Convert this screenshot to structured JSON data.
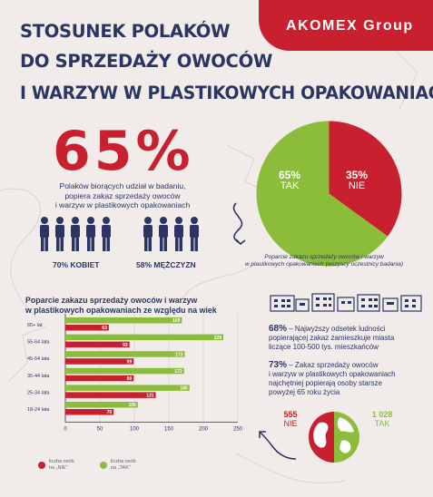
{
  "header": {
    "brand": "AKOMEX Group",
    "title_lines": [
      "STOSUNEK POLAKÓW",
      "DO SPRZEDAŻY OWOCÓW",
      "I WARZYW W PLASTIKOWYCH OPAKOWANIACH"
    ]
  },
  "headline": {
    "percent": "65%",
    "description_lines": [
      "Polaków biorących udział w badaniu,",
      "popiera zakaz sprzedaży owoców",
      "i warzyw w plastikowych opakowaniach"
    ]
  },
  "gender": {
    "women_label": "70% KOBIET",
    "women_value": 70,
    "men_label": "58% MĘŻCZYZN",
    "men_value": 58
  },
  "pie": {
    "slices": [
      {
        "pct": "65%",
        "word": "TAK",
        "value": 65,
        "color": "#8bbd3a"
      },
      {
        "pct": "35%",
        "word": "NIE",
        "value": 35,
        "color": "#c8202e"
      }
    ],
    "caption_lines": [
      "Poparcie zakazu sprzedaży owoców i warzyw",
      "w plastikowych opakowaniach (wszyscy uczestnicy badania)"
    ]
  },
  "chart_title_lines": [
    "Poparcie zakazu sprzedaży owoców i warzyw",
    "w plastikowych opakowaniach ze względu na wiek"
  ],
  "chart_data": {
    "type": "bar",
    "orientation": "horizontal",
    "categories": [
      "65+ lat",
      "55-64 lata",
      "45-54 lata",
      "35-44 lata",
      "25-34 lata",
      "18-24 lata"
    ],
    "series": [
      {
        "name": "liczba osób na „TAK”",
        "color": "#8bbd3a",
        "values": [
          169,
          229,
          173,
          172,
          180,
          105
        ]
      },
      {
        "name": "liczba osób na „NIE”",
        "color": "#c8202e",
        "values": [
          63,
          93,
          99,
          99,
          131,
          70
        ]
      }
    ],
    "xlim": [
      0,
      250
    ],
    "xticks": [
      0,
      50,
      100,
      150,
      200,
      250
    ],
    "grid": true,
    "legend": "bottom",
    "colors": {
      "tak": "#8bbd3a",
      "nie": "#c8202e",
      "axis": "#2b3563"
    }
  },
  "legend": {
    "nie_lines": [
      "liczba osób",
      "na „NIE”"
    ],
    "tak_lines": [
      "liczba osób",
      "na „TAK”"
    ]
  },
  "facts": {
    "fact1_pct": "68%",
    "fact1_lines": [
      " – Najwyższy odsetek ludności",
      "popierającej zakaz zamieszkuje miasta",
      "liczące 100-500 tys. mieszkańców"
    ],
    "fact2_pct": "73%",
    "fact2_lines": [
      " – Zakaz sprzedaży owoców",
      "i warzyw w plastikowych opakowaniach",
      "najchętniej popierają osoby starsze",
      "powyżej 65 roku życia"
    ]
  },
  "totals": {
    "nie_num": "555",
    "nie_word": "NIE",
    "tak_num": "1 028",
    "tak_word": "TAK"
  }
}
